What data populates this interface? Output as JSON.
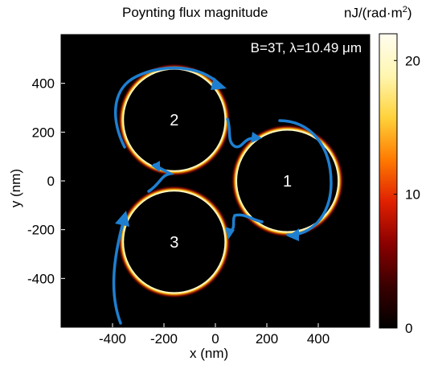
{
  "figure": {
    "title": "Poynting flux magnitude",
    "colorbar_units": "nJ/(rad·m",
    "colorbar_units_sup": "2",
    "colorbar_units_close": ")",
    "annotation": "B=3T, λ=10.49 μm"
  },
  "chart_data": {
    "type": "heatmap",
    "title": "Poynting flux magnitude",
    "xlabel": "x (nm)",
    "ylabel": "y (nm)",
    "xlim": [
      -600,
      600
    ],
    "ylim": [
      -600,
      600
    ],
    "xticks": [
      -400,
      -200,
      0,
      200,
      400
    ],
    "yticks": [
      400,
      200,
      0,
      -200,
      -400
    ],
    "grid": false,
    "colorbar": {
      "label": "nJ/(rad·m2)",
      "range": [
        0,
        22
      ],
      "ticks": [
        0,
        10,
        20
      ],
      "colormap": [
        "#000000",
        "#3a0000",
        "#8b0000",
        "#e02000",
        "#ff7a00",
        "#ffd23a",
        "#fff6b0",
        "#fffdf0"
      ]
    },
    "particles": [
      {
        "label": "2",
        "center_x": -160,
        "center_y": 250,
        "radius": 200
      },
      {
        "label": "1",
        "center_x": 280,
        "center_y": 0,
        "radius": 200
      },
      {
        "label": "3",
        "center_x": -160,
        "center_y": -250,
        "radius": 200
      }
    ],
    "annotation": "B=3T, λ=10.49 μm",
    "arrow_color": "#1e7fd0"
  }
}
